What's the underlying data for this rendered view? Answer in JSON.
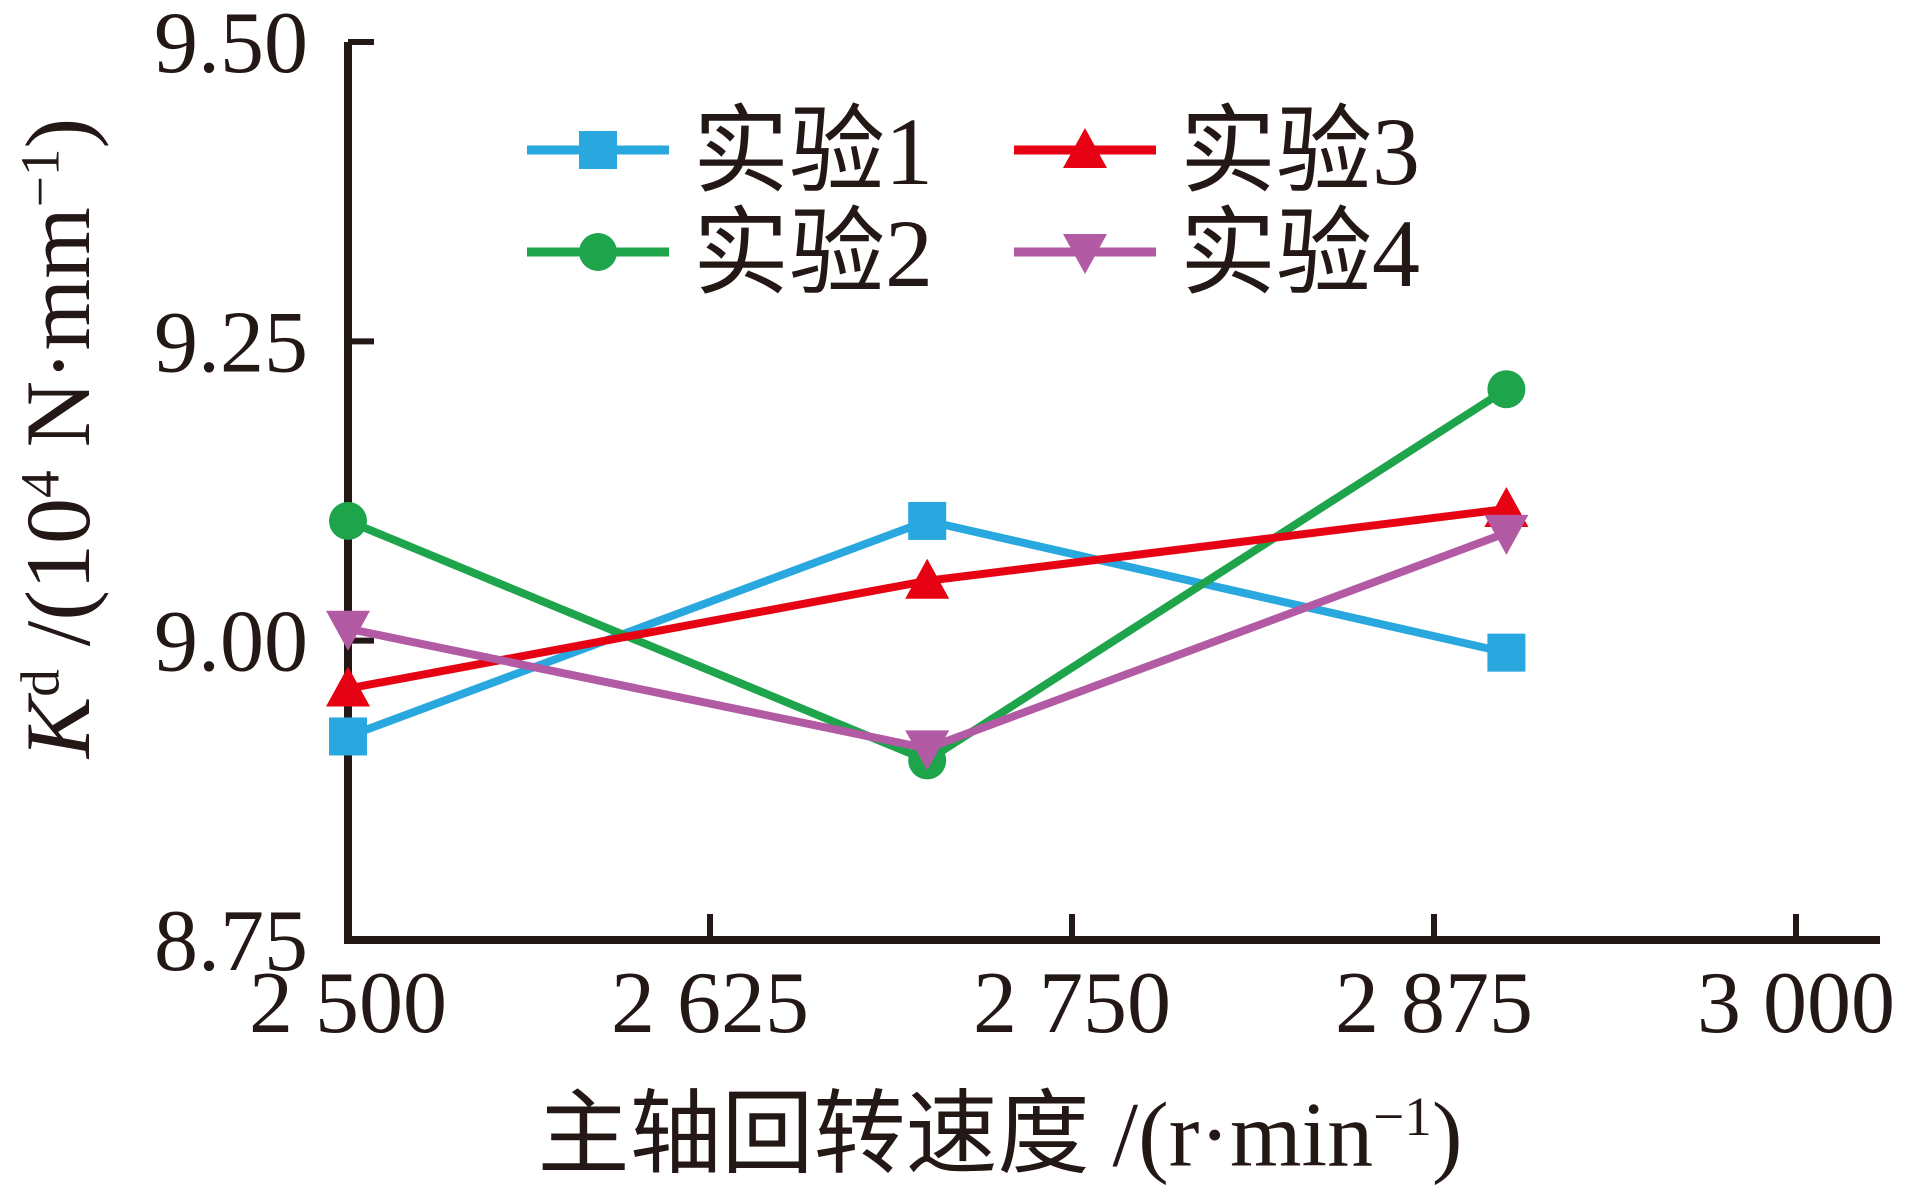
{
  "chart_data": {
    "type": "line",
    "title": "",
    "x": [
      2500,
      2700,
      2900
    ],
    "series": [
      {
        "name": "实验1",
        "color": "#29A7DF",
        "marker": "square",
        "values": [
          8.92,
          9.1,
          8.99
        ]
      },
      {
        "name": "实验2",
        "color": "#1EA44A",
        "marker": "circle",
        "values": [
          9.1,
          8.9,
          9.21
        ]
      },
      {
        "name": "实验3",
        "color": "#E60213",
        "marker": "triangle-up",
        "values": [
          8.96,
          9.05,
          9.11
        ]
      },
      {
        "name": "实验4",
        "color": "#B25AA3",
        "marker": "triangle-down",
        "values": [
          9.01,
          8.91,
          9.09
        ]
      }
    ],
    "xlabel": "主轴回转速度 /(r·min⁻¹)",
    "ylabel": "Kᵈ /(10⁴ N·mm⁻¹)",
    "xlim": [
      2500,
      3000
    ],
    "ylim": [
      8.75,
      9.5
    ],
    "x_ticks": [
      {
        "value": 2500,
        "label": "2 500"
      },
      {
        "value": 2625,
        "label": "2 625"
      },
      {
        "value": 2750,
        "label": "2 750"
      },
      {
        "value": 2875,
        "label": "2 875"
      },
      {
        "value": 3000,
        "label": "3 000"
      }
    ],
    "y_ticks": [
      {
        "value": 8.75,
        "label": "8.75"
      },
      {
        "value": 9.0,
        "label": "9.00"
      },
      {
        "value": 9.25,
        "label": "9.25"
      },
      {
        "value": 9.5,
        "label": "9.50"
      }
    ],
    "grid": false,
    "legend_position": "top-center",
    "axis_color": "#231815"
  },
  "labels": {
    "y_axis": {
      "variable": "K",
      "variable_sup": "d",
      "divider": " /(10",
      "power_sup": "4",
      "unit": " N·mm",
      "unit_sup": "−1",
      "close_paren": ")"
    },
    "x_axis": {
      "base": "主轴回转速度 /(r·min",
      "sup": "−1",
      "close_paren": ")"
    }
  }
}
